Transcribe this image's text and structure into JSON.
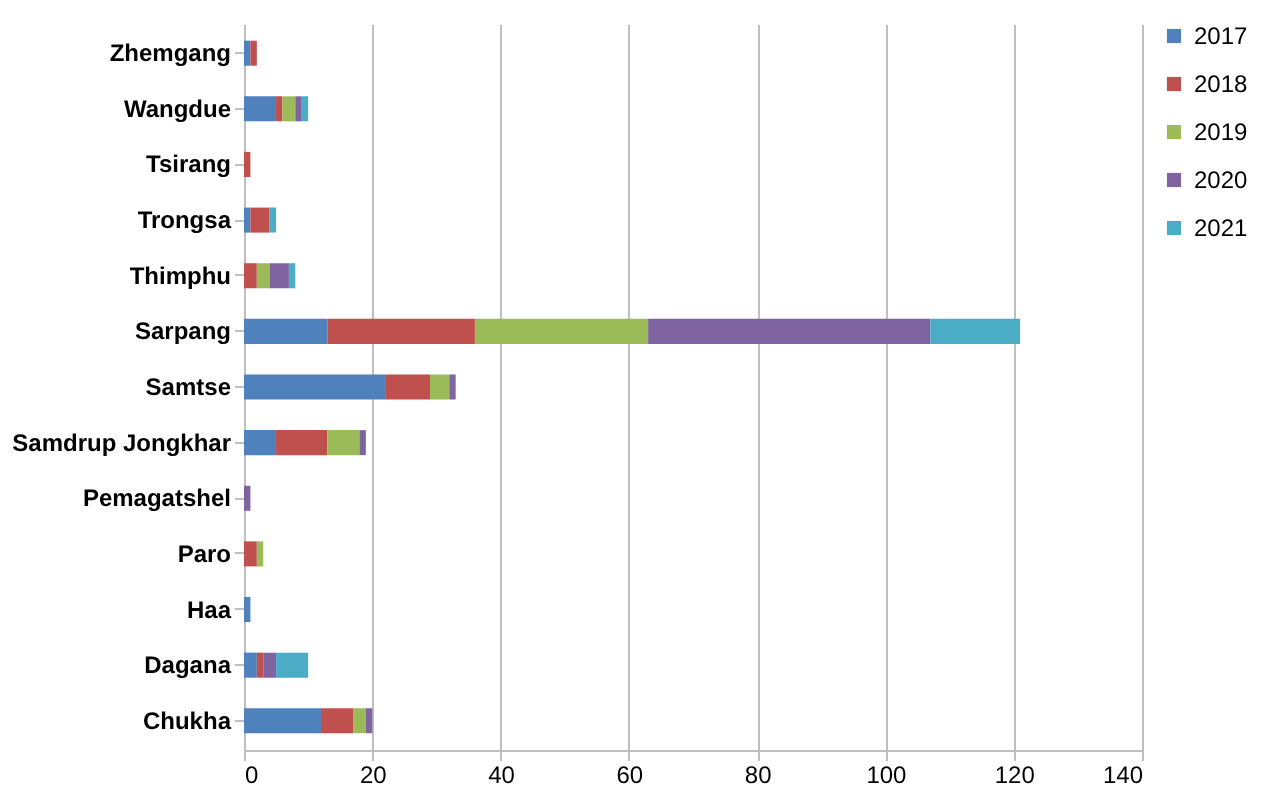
{
  "chart_data": {
    "type": "bar",
    "orientation": "horizontal",
    "stacked": true,
    "categories": [
      "Zhemgang",
      "Wangdue",
      "Tsirang",
      "Trongsa",
      "Thimphu",
      "Sarpang",
      "Samtse",
      "Samdrup Jongkhar",
      "Pemagatshel",
      "Paro",
      "Haa",
      "Dagana",
      "Chukha"
    ],
    "series": [
      {
        "name": "2017",
        "color": "#4f81bd",
        "values": [
          1,
          5,
          null,
          1,
          null,
          13,
          22,
          5,
          null,
          null,
          1,
          2,
          12
        ]
      },
      {
        "name": "2018",
        "color": "#c0504d",
        "values": [
          1,
          1,
          1,
          3,
          2,
          23,
          7,
          8,
          null,
          2,
          null,
          1,
          5
        ]
      },
      {
        "name": "2019",
        "color": "#9bbb59",
        "values": [
          null,
          2,
          null,
          null,
          2,
          27,
          3,
          5,
          null,
          1,
          null,
          null,
          2
        ]
      },
      {
        "name": "2020",
        "color": "#8064a2",
        "values": [
          null,
          1,
          null,
          null,
          3,
          44,
          1,
          1,
          1,
          null,
          null,
          2,
          1
        ]
      },
      {
        "name": "2021",
        "color": "#4bacc6",
        "values": [
          null,
          1,
          null,
          1,
          1,
          14,
          null,
          null,
          null,
          null,
          null,
          5,
          null
        ]
      }
    ],
    "xlim": [
      0,
      140
    ],
    "xticks": [
      0,
      20,
      40,
      60,
      80,
      100,
      120,
      140
    ],
    "grid": "x",
    "legend": "right"
  }
}
